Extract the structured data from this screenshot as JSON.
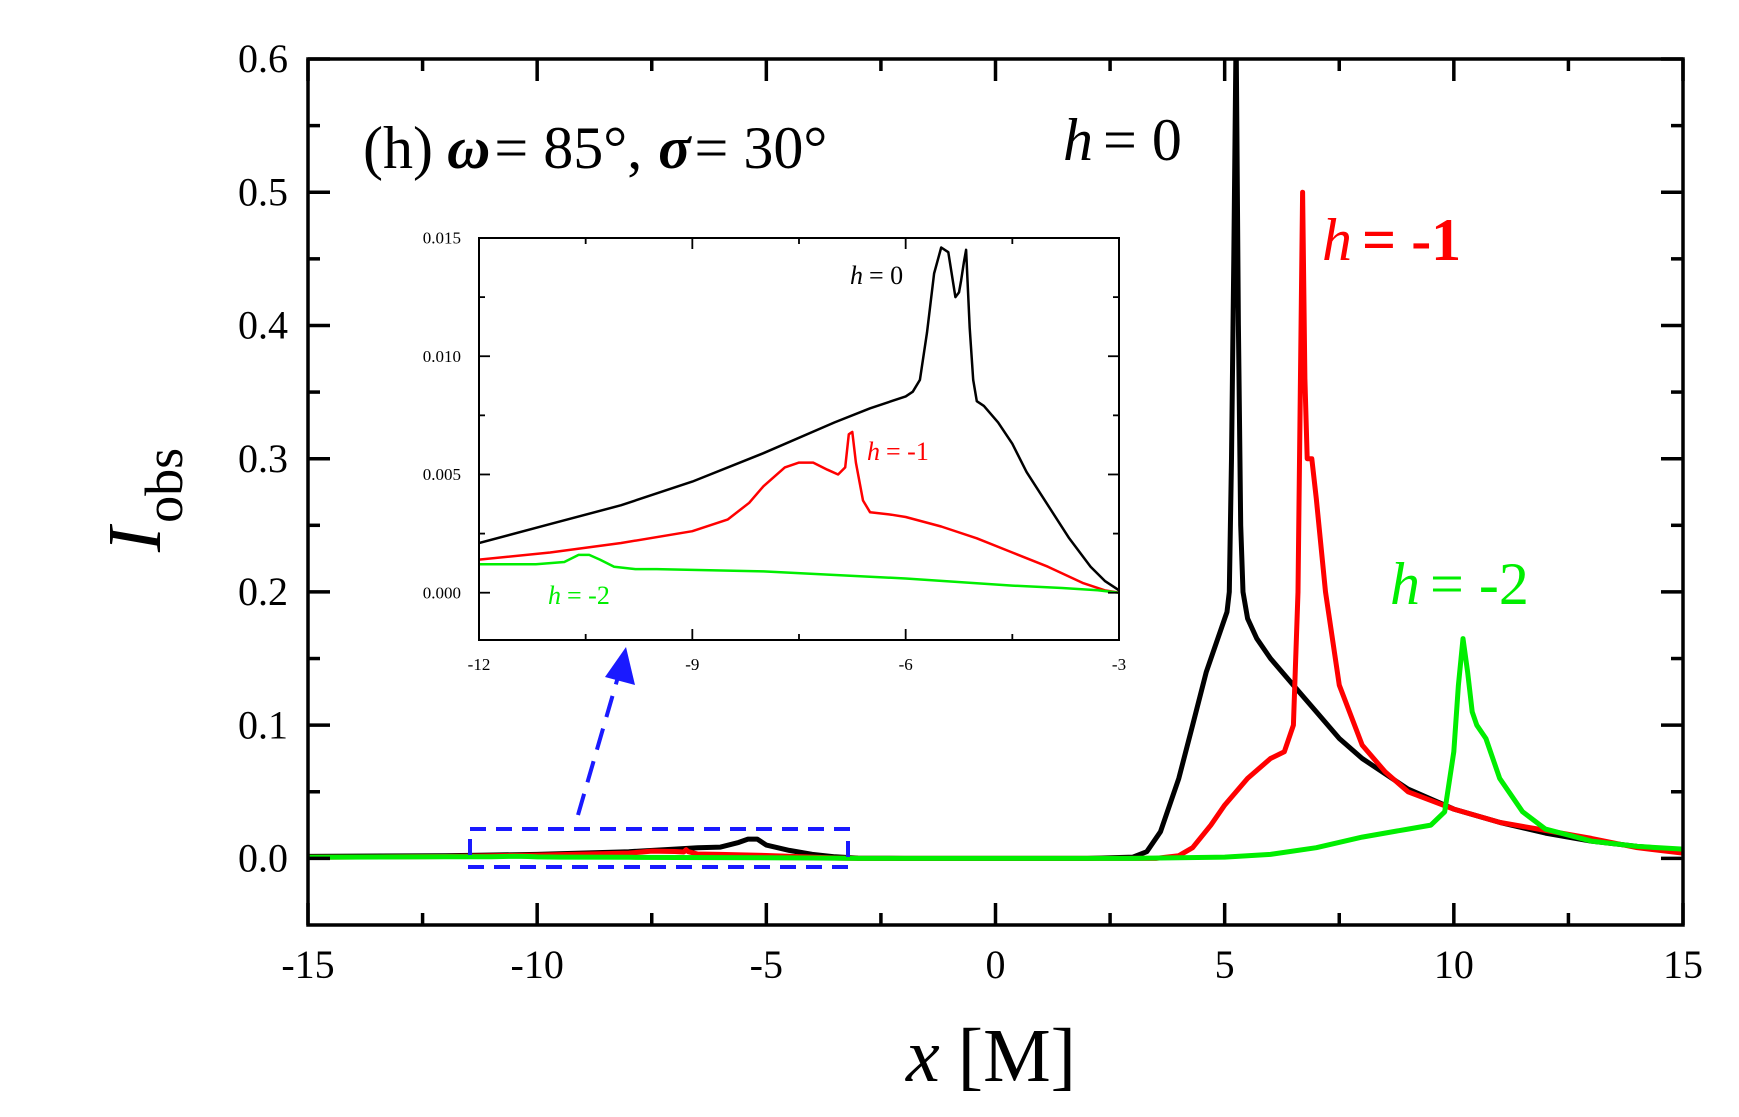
{
  "chart_data": [
    {
      "type": "line",
      "panel_label": "(h)",
      "title_parts": {
        "omega_sym": "ω",
        "omega_val": "= 85°,",
        "sigma_sym": "σ",
        "sigma_val": "= 30°"
      },
      "xlabel": {
        "var": "x",
        "unit": "[M]"
      },
      "ylabel": {
        "main": "I",
        "sub": "obs"
      },
      "xlim": [
        -15,
        15
      ],
      "ylim": [
        -0.05,
        0.6
      ],
      "xticks": [
        -15,
        -10,
        -5,
        0,
        5,
        10,
        15
      ],
      "xtick_labels": [
        "-15",
        "-10",
        "-5",
        "0",
        "5",
        "10",
        "15"
      ],
      "yticks": [
        0.0,
        0.1,
        0.2,
        0.3,
        0.4,
        0.5,
        0.6
      ],
      "ytick_labels": [
        "0.0",
        "0.1",
        "0.2",
        "0.3",
        "0.4",
        "0.5",
        "0.6"
      ],
      "series": [
        {
          "name": "h = 0",
          "label_var": "h",
          "label_val": "= 0",
          "color": "#000000",
          "x": [
            -15,
            -12,
            -10,
            -8,
            -7,
            -6.5,
            -6,
            -5.6,
            -5.4,
            -5.2,
            -5,
            -4.5,
            -4,
            -3.5,
            -3,
            -2,
            0,
            2,
            3,
            3.3,
            3.6,
            4,
            4.3,
            4.6,
            4.9,
            5.0,
            5.05,
            5.1,
            5.15,
            5.2,
            5.25,
            5.3,
            5.35,
            5.4,
            5.5,
            5.7,
            6,
            6.5,
            7,
            7.5,
            8,
            9,
            10,
            11,
            12,
            13,
            14,
            15
          ],
          "y": [
            0.0015,
            0.002,
            0.003,
            0.005,
            0.007,
            0.008,
            0.0085,
            0.012,
            0.0145,
            0.0145,
            0.01,
            0.006,
            0.003,
            0.0012,
            0.0002,
            0.0,
            0.0,
            0.0,
            0.001,
            0.005,
            0.02,
            0.06,
            0.1,
            0.14,
            0.17,
            0.18,
            0.185,
            0.2,
            0.3,
            0.45,
            0.62,
            0.4,
            0.25,
            0.2,
            0.18,
            0.165,
            0.15,
            0.13,
            0.11,
            0.09,
            0.075,
            0.052,
            0.037,
            0.027,
            0.019,
            0.013,
            0.009,
            0.006
          ]
        },
        {
          "name": "h = -1",
          "label_var": "h",
          "label_val": "= -1",
          "color": "#ff0000",
          "x": [
            -15,
            -12,
            -10,
            -8,
            -7.5,
            -7,
            -6.8,
            -6.75,
            -6.7,
            -6.5,
            -6,
            -5,
            -4,
            -3.5,
            -3,
            0,
            3.5,
            4,
            4.3,
            4.7,
            5,
            5.5,
            6,
            6.3,
            6.5,
            6.6,
            6.65,
            6.7,
            6.75,
            6.8,
            6.9,
            7,
            7.2,
            7.5,
            8,
            8.5,
            9,
            10,
            11,
            12,
            13,
            14,
            15
          ],
          "y": [
            0.0008,
            0.0014,
            0.0025,
            0.004,
            0.0055,
            0.0052,
            0.0048,
            0.0065,
            0.005,
            0.0033,
            0.003,
            0.0022,
            0.001,
            0.0003,
            0.0,
            0.0,
            0.0,
            0.002,
            0.008,
            0.025,
            0.04,
            0.06,
            0.075,
            0.08,
            0.1,
            0.2,
            0.35,
            0.5,
            0.36,
            0.3,
            0.3,
            0.27,
            0.2,
            0.13,
            0.085,
            0.065,
            0.05,
            0.037,
            0.027,
            0.021,
            0.015,
            0.008,
            0.004
          ]
        },
        {
          "name": "h = -2",
          "label_var": "h",
          "label_val": "= -2",
          "color": "#00ee00",
          "x": [
            -15,
            -12,
            -11,
            -10.5,
            -10.2,
            -10,
            -9.5,
            -8,
            -6,
            -4,
            -3,
            0,
            3,
            5,
            6,
            7,
            8,
            9,
            9.5,
            9.8,
            10,
            10.1,
            10.2,
            10.3,
            10.4,
            10.5,
            10.7,
            11,
            11.5,
            12,
            13,
            14,
            15
          ],
          "y": [
            0.0008,
            0.0012,
            0.0012,
            0.0016,
            0.0014,
            0.0011,
            0.001,
            0.0008,
            0.0006,
            0.0003,
            0.0,
            0.0,
            0.0,
            0.001,
            0.003,
            0.008,
            0.016,
            0.022,
            0.025,
            0.035,
            0.08,
            0.13,
            0.165,
            0.14,
            0.11,
            0.1,
            0.09,
            0.06,
            0.035,
            0.022,
            0.013,
            0.009,
            0.007
          ]
        }
      ]
    },
    {
      "type": "line",
      "role": "inset",
      "xlim": [
        -12,
        -3
      ],
      "ylim": [
        -0.002,
        0.015
      ],
      "xticks": [
        -12,
        -9,
        -6,
        -3
      ],
      "xtick_labels": [
        "-12",
        "-9",
        "-6",
        "-3"
      ],
      "yticks": [
        0.0,
        0.005,
        0.01,
        0.015
      ],
      "ytick_labels": [
        "0.000",
        "0.005",
        "0.010",
        "0.015"
      ],
      "series": [
        {
          "name": "h = 0",
          "label_var": "h",
          "label_val": "= 0",
          "color": "#000000",
          "x": [
            -12,
            -11,
            -10,
            -9,
            -8,
            -7,
            -6.5,
            -6,
            -5.9,
            -5.8,
            -5.7,
            -5.6,
            -5.5,
            -5.4,
            -5.3,
            -5.25,
            -5.22,
            -5.18,
            -5.15,
            -5.1,
            -5.05,
            -5,
            -4.9,
            -4.7,
            -4.5,
            -4.3,
            -4,
            -3.7,
            -3.4,
            -3.2,
            -3
          ],
          "y": [
            0.0021,
            0.0029,
            0.0037,
            0.0047,
            0.0059,
            0.0072,
            0.0078,
            0.0083,
            0.0085,
            0.009,
            0.011,
            0.0135,
            0.0146,
            0.0144,
            0.0125,
            0.0127,
            0.0132,
            0.014,
            0.0145,
            0.0112,
            0.009,
            0.0081,
            0.0079,
            0.0072,
            0.0063,
            0.0051,
            0.0037,
            0.0023,
            0.0011,
            0.0005,
            0.0001
          ]
        },
        {
          "name": "h = -1",
          "label_var": "h",
          "label_val": "= -1",
          "color": "#ff0000",
          "x": [
            -12,
            -11,
            -10,
            -9,
            -8.5,
            -8.2,
            -8,
            -7.7,
            -7.5,
            -7.3,
            -7.1,
            -6.95,
            -6.85,
            -6.8,
            -6.75,
            -6.7,
            -6.6,
            -6.5,
            -6.2,
            -6,
            -5.5,
            -5,
            -4.5,
            -4,
            -3.5,
            -3.2,
            -3
          ],
          "y": [
            0.0014,
            0.0017,
            0.0021,
            0.0026,
            0.0031,
            0.0038,
            0.0045,
            0.0053,
            0.0055,
            0.0055,
            0.0052,
            0.005,
            0.0053,
            0.0067,
            0.0068,
            0.0055,
            0.0039,
            0.0034,
            0.0033,
            0.0032,
            0.0028,
            0.0023,
            0.0017,
            0.0011,
            0.0004,
            0.0001,
            0.0
          ]
        },
        {
          "name": "h = -2",
          "label_var": "h",
          "label_val": "= -2",
          "color": "#00ee00",
          "x": [
            -12,
            -11.2,
            -10.8,
            -10.6,
            -10.45,
            -10.3,
            -10.1,
            -9.8,
            -9.5,
            -8,
            -6,
            -4.5,
            -3.8,
            -3.3,
            -3
          ],
          "y": [
            0.0012,
            0.0012,
            0.0013,
            0.0016,
            0.0016,
            0.0014,
            0.0011,
            0.001,
            0.001,
            0.0009,
            0.0006,
            0.0003,
            0.0002,
            0.0001,
            0.0
          ]
        }
      ]
    }
  ]
}
